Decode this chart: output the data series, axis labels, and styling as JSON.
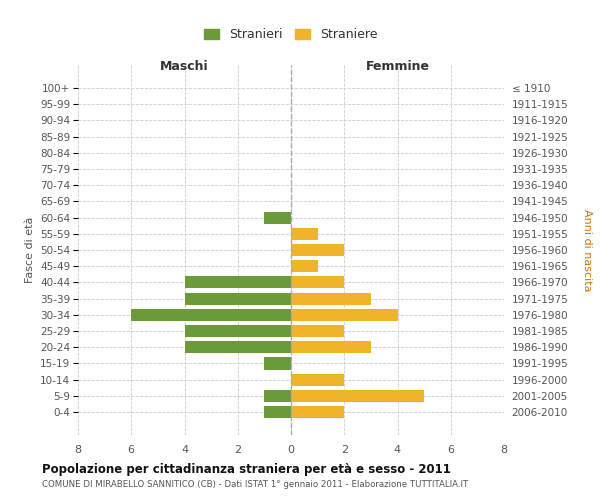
{
  "age_groups": [
    "100+",
    "95-99",
    "90-94",
    "85-89",
    "80-84",
    "75-79",
    "70-74",
    "65-69",
    "60-64",
    "55-59",
    "50-54",
    "45-49",
    "40-44",
    "35-39",
    "30-34",
    "25-29",
    "20-24",
    "15-19",
    "10-14",
    "5-9",
    "0-4"
  ],
  "birth_years": [
    "≤ 1910",
    "1911-1915",
    "1916-1920",
    "1921-1925",
    "1926-1930",
    "1931-1935",
    "1936-1940",
    "1941-1945",
    "1946-1950",
    "1951-1955",
    "1956-1960",
    "1961-1965",
    "1966-1970",
    "1971-1975",
    "1976-1980",
    "1981-1985",
    "1986-1990",
    "1991-1995",
    "1996-2000",
    "2001-2005",
    "2006-2010"
  ],
  "maschi": [
    0,
    0,
    0,
    0,
    0,
    0,
    0,
    0,
    1,
    0,
    0,
    0,
    4,
    4,
    6,
    4,
    4,
    1,
    0,
    1,
    1
  ],
  "femmine": [
    0,
    0,
    0,
    0,
    0,
    0,
    0,
    0,
    0,
    1,
    2,
    1,
    2,
    3,
    4,
    2,
    3,
    0,
    2,
    5,
    2
  ],
  "color_maschi": "#6a9a3a",
  "color_femmine": "#f0b429",
  "title": "Popolazione per cittadinanza straniera per età e sesso - 2011",
  "subtitle": "COMUNE DI MIRABELLO SANNITICO (CB) - Dati ISTAT 1° gennaio 2011 - Elaborazione TUTTITALIA.IT",
  "label_maschi_header": "Maschi",
  "label_femmine_header": "Femmine",
  "ylabel_left": "Fasce di età",
  "ylabel_right": "Anni di nascita",
  "legend_maschi": "Stranieri",
  "legend_femmine": "Straniere",
  "xlim": 8,
  "background_color": "#ffffff",
  "grid_color": "#cccccc",
  "anni_nascita_color": "#cc7700"
}
